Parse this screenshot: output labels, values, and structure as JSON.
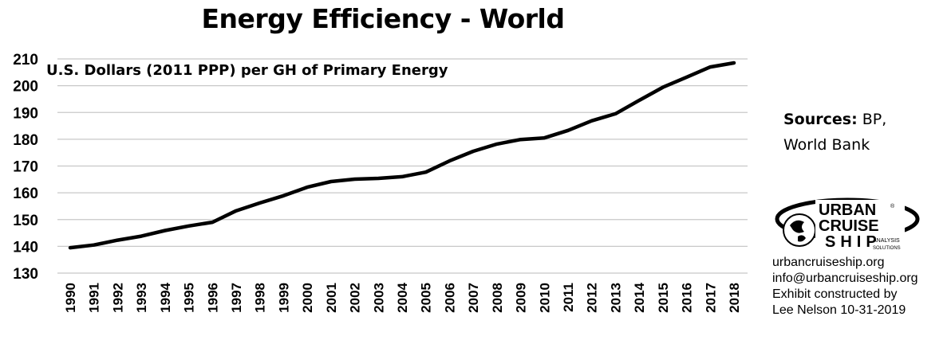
{
  "chart_data": {
    "type": "line",
    "title": "Energy Efficiency - World",
    "ylabel": "U.S. Dollars (2011 PPP) per GH of Primary Energy",
    "xlabel": "",
    "ylim": [
      130,
      210
    ],
    "yticks": [
      130,
      140,
      150,
      160,
      170,
      180,
      190,
      200,
      210
    ],
    "grid": true,
    "categories": [
      "1990",
      "1991",
      "1992",
      "1993",
      "1994",
      "1995",
      "1996",
      "1997",
      "1998",
      "1999",
      "2000",
      "2001",
      "2002",
      "2003",
      "2004",
      "2005",
      "2006",
      "2007",
      "2008",
      "2009",
      "2010",
      "2011",
      "2012",
      "2013",
      "2014",
      "2015",
      "2016",
      "2017",
      "2018"
    ],
    "series": [
      {
        "values": [
          139.5,
          140.5,
          142.3,
          143.8,
          145.9,
          147.6,
          149.0,
          153.3,
          156.2,
          158.9,
          162.1,
          164.2,
          165.1,
          165.4,
          166.0,
          167.7,
          171.9,
          175.5,
          178.2,
          179.9,
          180.5,
          183.3,
          186.9,
          189.5,
          194.5,
          199.4,
          203.2,
          207.0,
          208.5
        ],
        "color": "#000000"
      }
    ]
  },
  "sources": {
    "label": "Sources:",
    "text": "BP,",
    "text2": "World Bank"
  },
  "logo": {
    "line1": "URBAN",
    "line2": "CRUISE",
    "line3": "SHIP",
    "sub1": "ANALYSIS",
    "sub2": "SOLUTIONS",
    "mark": "®"
  },
  "credits": {
    "website": "urbancruiseship.org",
    "email": "info@urbancruiseship.org",
    "constructed": "Exhibit constructed by",
    "author": "Lee Nelson 10-31-2019"
  }
}
